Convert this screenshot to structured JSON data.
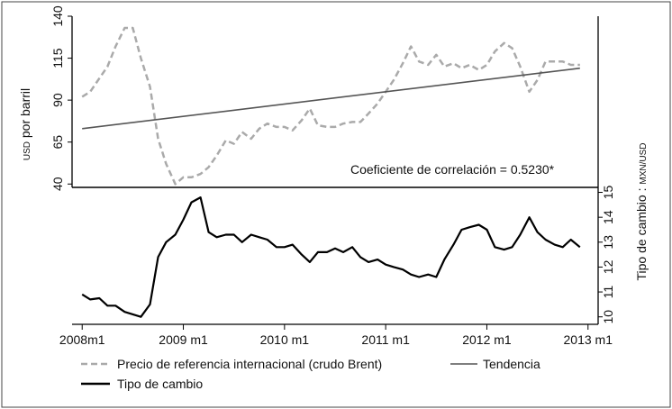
{
  "chart_data": {
    "type": "line",
    "annotation": "Coeficiente de correlación = 0.5230*",
    "x_axis": {
      "ticks": [
        {
          "value": 2008.0,
          "label": "2008m1"
        },
        {
          "value": 2009.0,
          "label": "2009 m1"
        },
        {
          "value": 2010.0,
          "label": "2010 m1"
        },
        {
          "value": 2011.0,
          "label": "2011 m1"
        },
        {
          "value": 2012.0,
          "label": "2012 m1"
        },
        {
          "value": 2013.0,
          "label": "2013 m1"
        }
      ],
      "range": [
        2007.9,
        2013.1
      ]
    },
    "top_panel": {
      "y_label_prefix": "USD",
      "y_label_main": " por barril",
      "y_range": [
        38,
        140
      ],
      "y_ticks": [
        40,
        65,
        90,
        115,
        140
      ]
    },
    "bottom_panel": {
      "y_label_main": "Tipo de cambio : ",
      "y_label_suffix": "MXN/USD",
      "y_range": [
        9.7,
        15.2
      ],
      "y_ticks": [
        10,
        11,
        12,
        13,
        14,
        15
      ]
    },
    "series": [
      {
        "name": "Precio de referencia internacional (crudo Brent)",
        "panel": "top",
        "style": "dashed",
        "color": "#aaaaaa",
        "x": [
          2008.0,
          2008.08,
          2008.17,
          2008.25,
          2008.33,
          2008.42,
          2008.5,
          2008.58,
          2008.67,
          2008.75,
          2008.83,
          2008.92,
          2009.0,
          2009.08,
          2009.17,
          2009.25,
          2009.33,
          2009.42,
          2009.5,
          2009.58,
          2009.67,
          2009.75,
          2009.83,
          2009.92,
          2010.0,
          2010.08,
          2010.17,
          2010.25,
          2010.33,
          2010.42,
          2010.5,
          2010.58,
          2010.67,
          2010.75,
          2010.83,
          2010.92,
          2011.0,
          2011.08,
          2011.17,
          2011.25,
          2011.33,
          2011.42,
          2011.5,
          2011.58,
          2011.67,
          2011.75,
          2011.83,
          2011.92,
          2012.0,
          2012.08,
          2012.17,
          2012.25,
          2012.33,
          2012.42,
          2012.5,
          2012.58,
          2012.67,
          2012.75,
          2012.83,
          2012.92
        ],
        "values": [
          92,
          95,
          103,
          110,
          122,
          133,
          133,
          115,
          98,
          67,
          52,
          40,
          44,
          44,
          46,
          50,
          57,
          66,
          64,
          71,
          67,
          73,
          76,
          74,
          74,
          72,
          78,
          85,
          75,
          74,
          74,
          76,
          77,
          77,
          82,
          88,
          95,
          102,
          112,
          122,
          113,
          111,
          117,
          110,
          112,
          109,
          111,
          108,
          111,
          119,
          124,
          121,
          110,
          95,
          102,
          113,
          113,
          113,
          111,
          111
        ]
      },
      {
        "name": "Tendencia",
        "panel": "top",
        "style": "solid",
        "color": "#555555",
        "x": [
          2008.0,
          2012.92
        ],
        "values": [
          73,
          109
        ]
      },
      {
        "name": "Tipo de cambio",
        "panel": "bottom",
        "style": "solid",
        "color": "#000000",
        "x": [
          2008.0,
          2008.08,
          2008.17,
          2008.25,
          2008.33,
          2008.42,
          2008.5,
          2008.58,
          2008.67,
          2008.75,
          2008.83,
          2008.92,
          2009.0,
          2009.08,
          2009.17,
          2009.25,
          2009.33,
          2009.42,
          2009.5,
          2009.58,
          2009.67,
          2009.75,
          2009.83,
          2009.92,
          2010.0,
          2010.08,
          2010.17,
          2010.25,
          2010.33,
          2010.42,
          2010.5,
          2010.58,
          2010.67,
          2010.75,
          2010.83,
          2010.92,
          2011.0,
          2011.08,
          2011.17,
          2011.25,
          2011.33,
          2011.42,
          2011.5,
          2011.58,
          2011.67,
          2011.75,
          2011.83,
          2011.92,
          2012.0,
          2012.08,
          2012.17,
          2012.25,
          2012.33,
          2012.42,
          2012.5,
          2012.58,
          2012.67,
          2012.75,
          2012.83,
          2012.92
        ],
        "values": [
          10.9,
          10.7,
          10.75,
          10.45,
          10.45,
          10.2,
          10.1,
          10.0,
          10.5,
          12.4,
          13.0,
          13.3,
          13.9,
          14.6,
          14.8,
          13.4,
          13.2,
          13.3,
          13.3,
          13.0,
          13.3,
          13.2,
          13.1,
          12.8,
          12.8,
          12.9,
          12.5,
          12.2,
          12.6,
          12.6,
          12.75,
          12.6,
          12.8,
          12.4,
          12.2,
          12.3,
          12.1,
          12.0,
          11.9,
          11.7,
          11.6,
          11.7,
          11.6,
          12.3,
          12.9,
          13.5,
          13.6,
          13.7,
          13.5,
          12.8,
          12.7,
          12.8,
          13.3,
          14.0,
          13.4,
          13.1,
          12.9,
          12.8,
          13.1,
          12.8
        ]
      }
    ]
  },
  "legend": {
    "items": [
      {
        "label": "Precio de referencia internacional (crudo Brent)",
        "style": "dashed",
        "color": "#aaaaaa"
      },
      {
        "label": "Tendencia",
        "style": "solid",
        "color": "#555555"
      },
      {
        "label": "Tipo de cambio",
        "style": "solid",
        "color": "#000000"
      }
    ]
  }
}
